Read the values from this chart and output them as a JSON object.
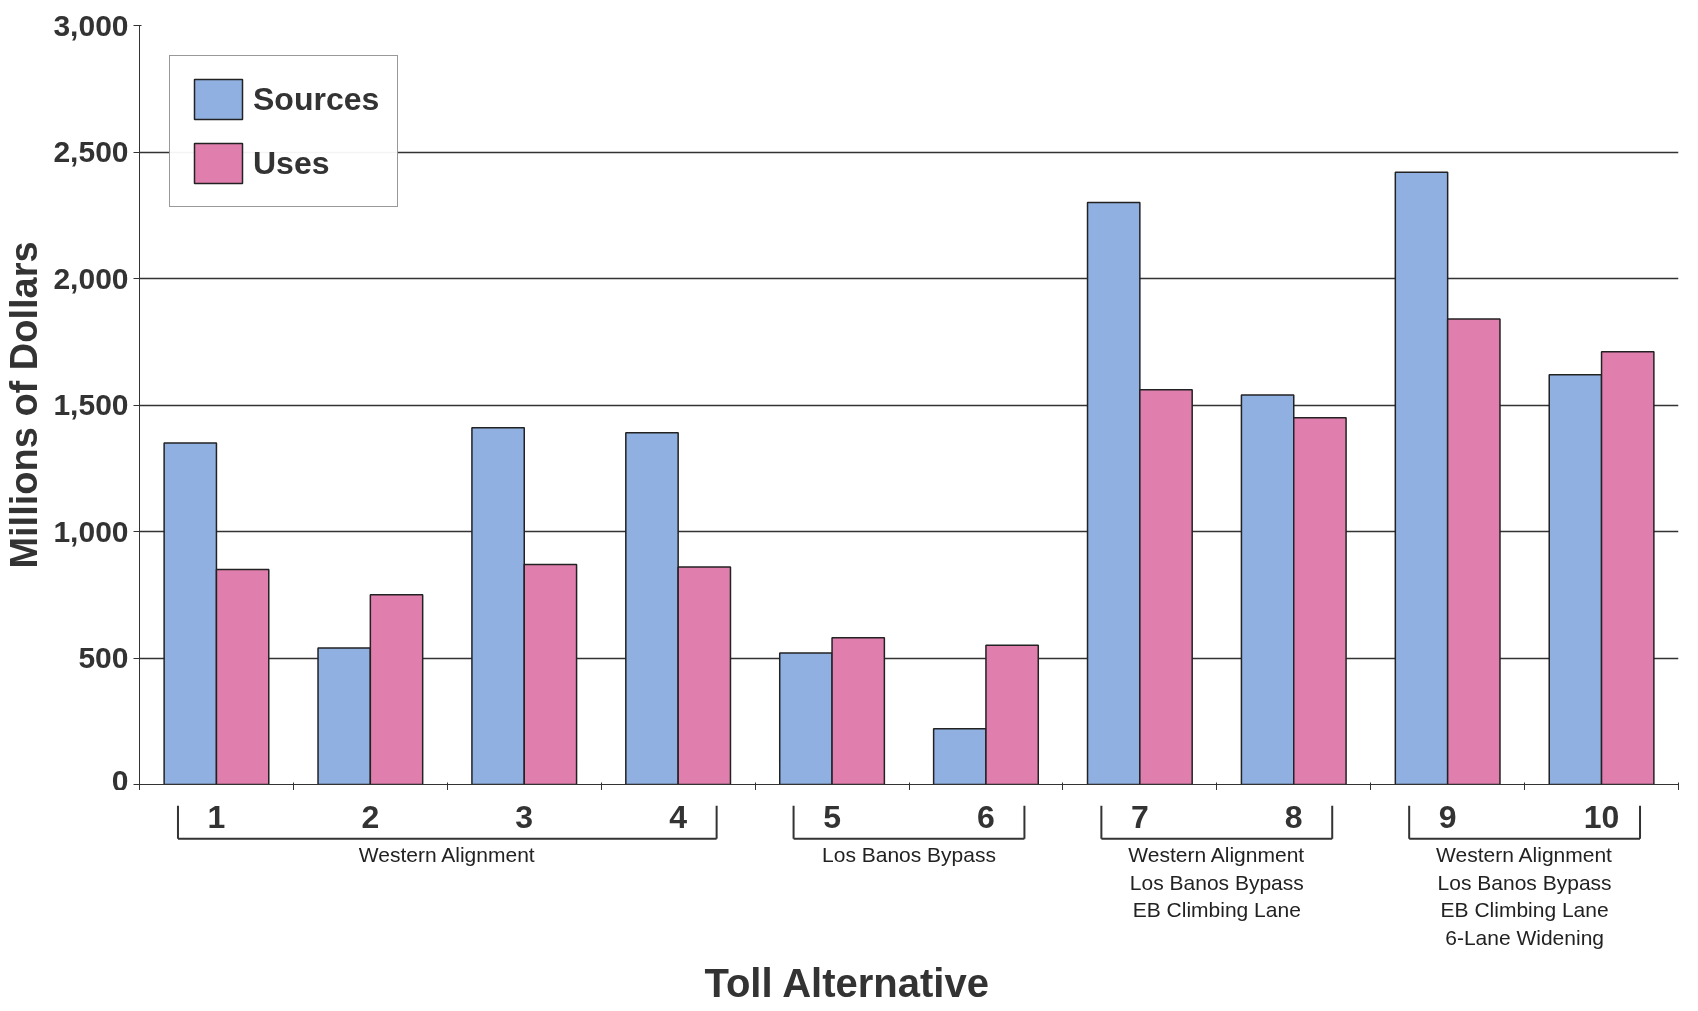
{
  "chart_data": {
    "type": "bar",
    "xlabel": "Toll Alternative",
    "ylabel": "Millions of Dollars",
    "categories": [
      "1",
      "2",
      "3",
      "4",
      "5",
      "6",
      "7",
      "8",
      "9",
      "10"
    ],
    "series": [
      {
        "name": "Sources",
        "color": "#8fb0e0",
        "values": [
          1350,
          540,
          1410,
          1390,
          520,
          220,
          2300,
          1540,
          2420,
          1620
        ]
      },
      {
        "name": "Uses",
        "color": "#e07fae",
        "values": [
          850,
          750,
          870,
          860,
          580,
          550,
          1560,
          1450,
          1840,
          1710
        ]
      }
    ],
    "ylim": [
      0,
      3000
    ],
    "yticks": [
      0,
      {
        "value": 500,
        "label": "500"
      },
      {
        "value": 1000,
        "label": "1,000"
      },
      {
        "value": 1500,
        "label": "1,500"
      },
      {
        "value": 2000,
        "label": "2,000"
      },
      {
        "value": 2500,
        "label": "2,500"
      },
      {
        "value": 3000,
        "label": "3,000"
      }
    ],
    "grid": "y",
    "legend": "top left",
    "annotations": [
      "Western Alignment",
      "Los Banos Bypass",
      "Western Alignment\nLos Banos Bypass\nEB Climbing Lane",
      "Western Alignment\nLos Banos Bypass\nEB Climbing Lane\n6-Lane Widening"
    ]
  }
}
